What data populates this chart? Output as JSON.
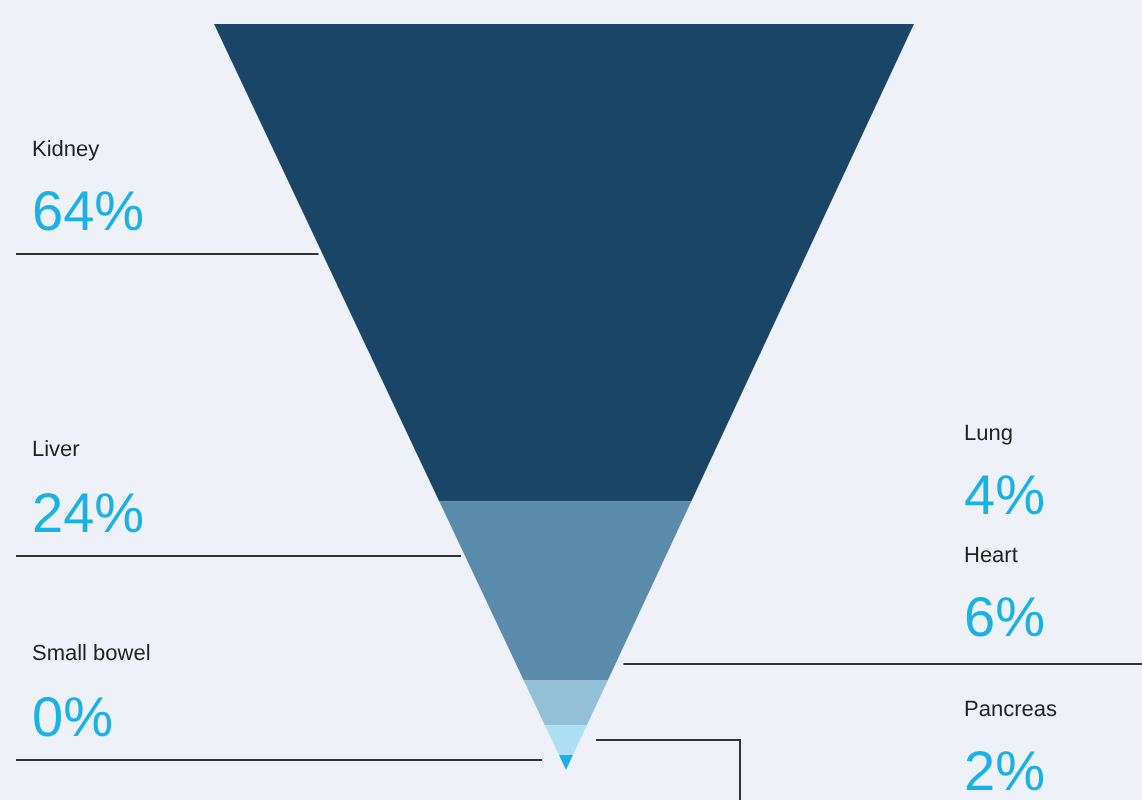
{
  "chart_data": {
    "type": "other",
    "categories": [
      "Kidney",
      "Liver",
      "Heart",
      "Lung",
      "Pancreas",
      "Small bowel"
    ],
    "values": [
      64,
      24,
      6,
      4,
      2,
      0
    ],
    "value_labels": [
      "64%",
      "24%",
      "6%",
      "4%",
      "2%",
      "0%"
    ],
    "colors": [
      "#1b4567",
      "#5b8bab",
      "#93bfd8",
      "#aee0f5",
      "#1ab2e6",
      "#1ab2e6"
    ]
  }
}
